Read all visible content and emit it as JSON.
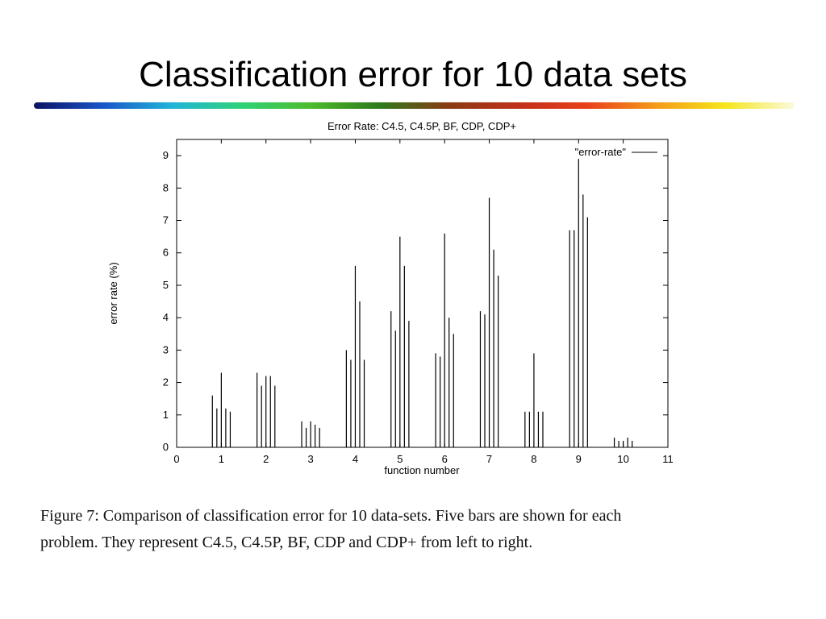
{
  "slide": {
    "title": "Classification error for 10 data sets",
    "rainbow_colors": [
      "#0b1464",
      "#1a56c8",
      "#21b4d8",
      "#2fd27a",
      "#4dbb2c",
      "#2e7a1e",
      "#8a3a12",
      "#c0301a",
      "#e8401a",
      "#f59a1a",
      "#f5e51a",
      "#fafadc"
    ]
  },
  "caption": {
    "line1": "Figure 7:  Comparison of classification error for 10 data-sets.  Five bars are shown for each",
    "line2": "problem.  They represent C4.5, C4.5P, BF, CDP and CDP+ from left to right."
  },
  "chart_data": {
    "type": "bar",
    "style": "impulses",
    "title": "Error Rate: C4.5, C4.5P, BF, CDP, CDP+",
    "xlabel": "function number",
    "ylabel": "error rate (%)",
    "xlim": [
      0,
      11
    ],
    "ylim": [
      0,
      9.5
    ],
    "xticks": [
      0,
      1,
      2,
      3,
      4,
      5,
      6,
      7,
      8,
      9,
      10,
      11
    ],
    "yticks": [
      0,
      1,
      2,
      3,
      4,
      5,
      6,
      7,
      8,
      9
    ],
    "legend": {
      "label": "\"error-rate\"",
      "position": "top-right"
    },
    "grid": false,
    "bar_offsets": [
      -0.2,
      -0.1,
      0,
      0.1,
      0.2
    ],
    "categories": [
      1,
      2,
      3,
      4,
      5,
      6,
      7,
      8,
      9,
      10
    ],
    "series": [
      {
        "values": [
          1.6,
          2.3,
          0.8,
          3.0,
          4.2,
          2.9,
          4.2,
          1.1,
          6.7,
          0.3
        ]
      },
      {
        "values": [
          1.2,
          1.9,
          0.6,
          2.7,
          3.6,
          2.8,
          4.1,
          1.1,
          6.7,
          0.2
        ]
      },
      {
        "values": [
          2.3,
          2.2,
          0.8,
          5.6,
          6.5,
          6.6,
          7.7,
          2.9,
          8.9,
          0.2
        ]
      },
      {
        "values": [
          1.2,
          2.2,
          0.7,
          4.5,
          5.6,
          4.0,
          6.1,
          1.1,
          7.8,
          0.3
        ]
      },
      {
        "values": [
          1.1,
          1.9,
          0.6,
          2.7,
          3.9,
          3.5,
          5.3,
          1.1,
          7.1,
          0.2
        ]
      }
    ]
  }
}
